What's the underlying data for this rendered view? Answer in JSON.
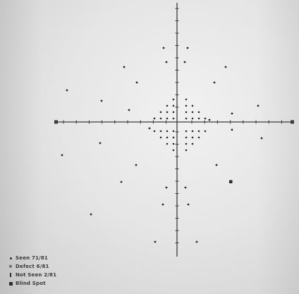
{
  "image": {
    "subject": "visual-field-plot",
    "colors": {
      "background": "#e2e2e2",
      "axis": "#3c3c3c",
      "marker": "#2a2a2a"
    }
  },
  "legend": {
    "items": [
      {
        "symbol": "dot-icon",
        "label": "Seen 71/81"
      },
      {
        "symbol": "x-icon",
        "label": "Defect 6/81"
      },
      {
        "symbol": "bar-icon",
        "label": "Not Seen 2/81"
      },
      {
        "symbol": "square-icon",
        "label": "Blind Spot"
      }
    ]
  }
}
